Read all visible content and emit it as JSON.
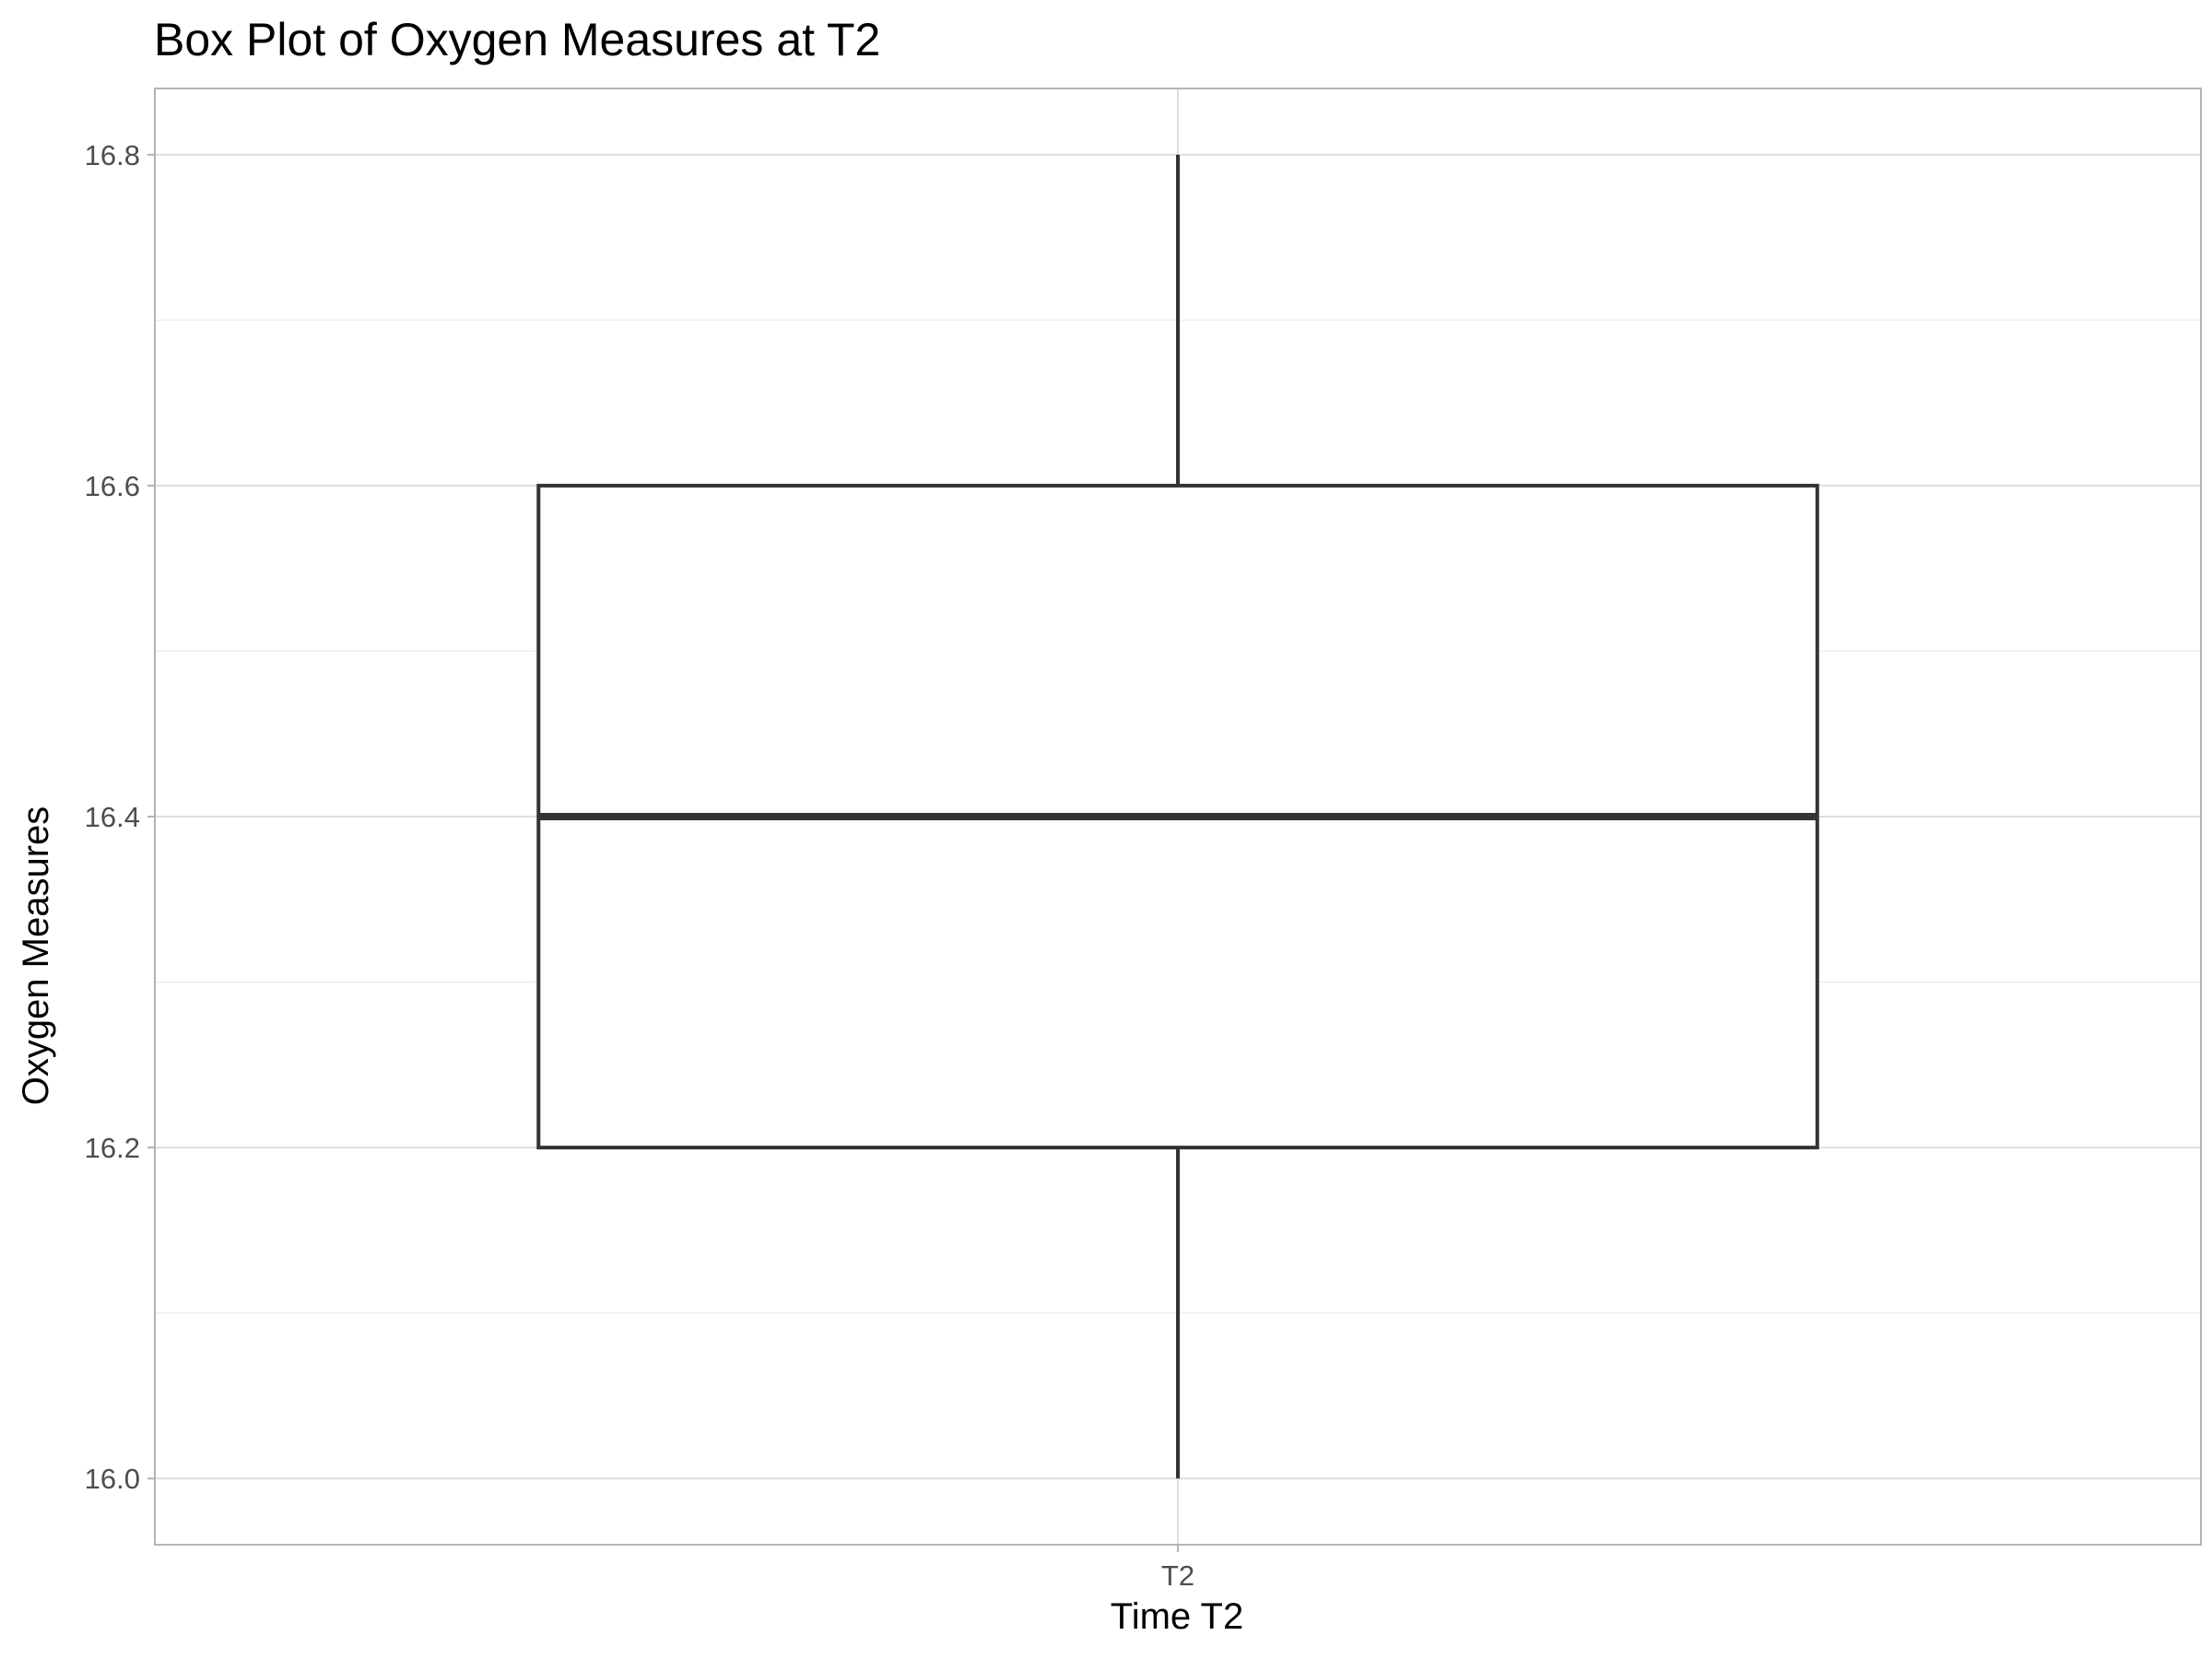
{
  "chart_data": {
    "type": "box",
    "title": "Box Plot of Oxygen Measures at T2",
    "xlabel": "Time T2",
    "ylabel": "Oxygen Measures",
    "categories": [
      "T2"
    ],
    "ylim": [
      15.96,
      16.84
    ],
    "yticks": [
      16.0,
      16.2,
      16.4,
      16.6,
      16.8
    ],
    "ytick_labels": [
      "16.0",
      "16.2",
      "16.4",
      "16.6",
      "16.8"
    ],
    "grid": true,
    "legend": "none",
    "boxes": [
      {
        "category": "T2",
        "min": 16.0,
        "q1": 16.2,
        "median": 16.4,
        "q3": 16.6,
        "max": 16.8
      }
    ],
    "colors": {
      "box_line": "#333333",
      "box_fill": "#ffffff",
      "grid": "#dedede",
      "border": "#b3b3b3"
    }
  }
}
